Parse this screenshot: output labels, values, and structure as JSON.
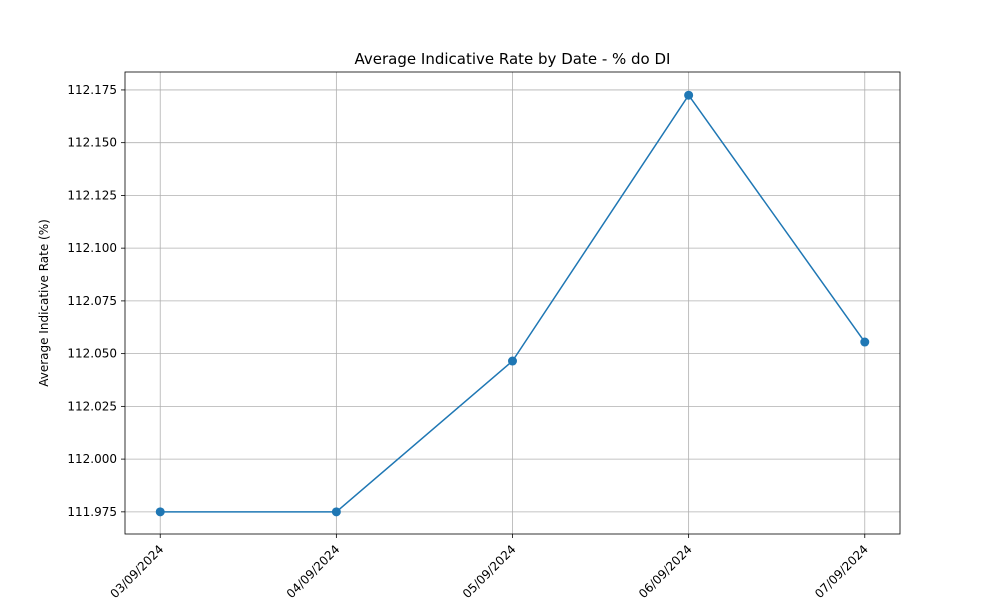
{
  "chart_data": {
    "type": "line",
    "title": "Average Indicative Rate by Date - % do DI",
    "xlabel": "",
    "ylabel": "Average Indicative Rate (%)",
    "categories": [
      "03/09/2024",
      "04/09/2024",
      "05/09/2024",
      "06/09/2024",
      "07/09/2024"
    ],
    "series": [
      {
        "values": [
          111.975,
          111.975,
          112.0465,
          112.1725,
          112.0555
        ]
      }
    ],
    "ylim": [
      111.9645,
      112.1835
    ],
    "yticks": [
      111.975,
      112.0,
      112.025,
      112.05,
      112.075,
      112.1,
      112.125,
      112.15,
      112.175
    ],
    "ytick_labels": [
      "111.975",
      "112.000",
      "112.025",
      "112.050",
      "112.075",
      "112.100",
      "112.125",
      "112.150",
      "112.175"
    ],
    "grid": true,
    "legend": "none",
    "markers": true,
    "x_tick_rotation": 45,
    "colors": {
      "series": "#1f77b4"
    }
  }
}
